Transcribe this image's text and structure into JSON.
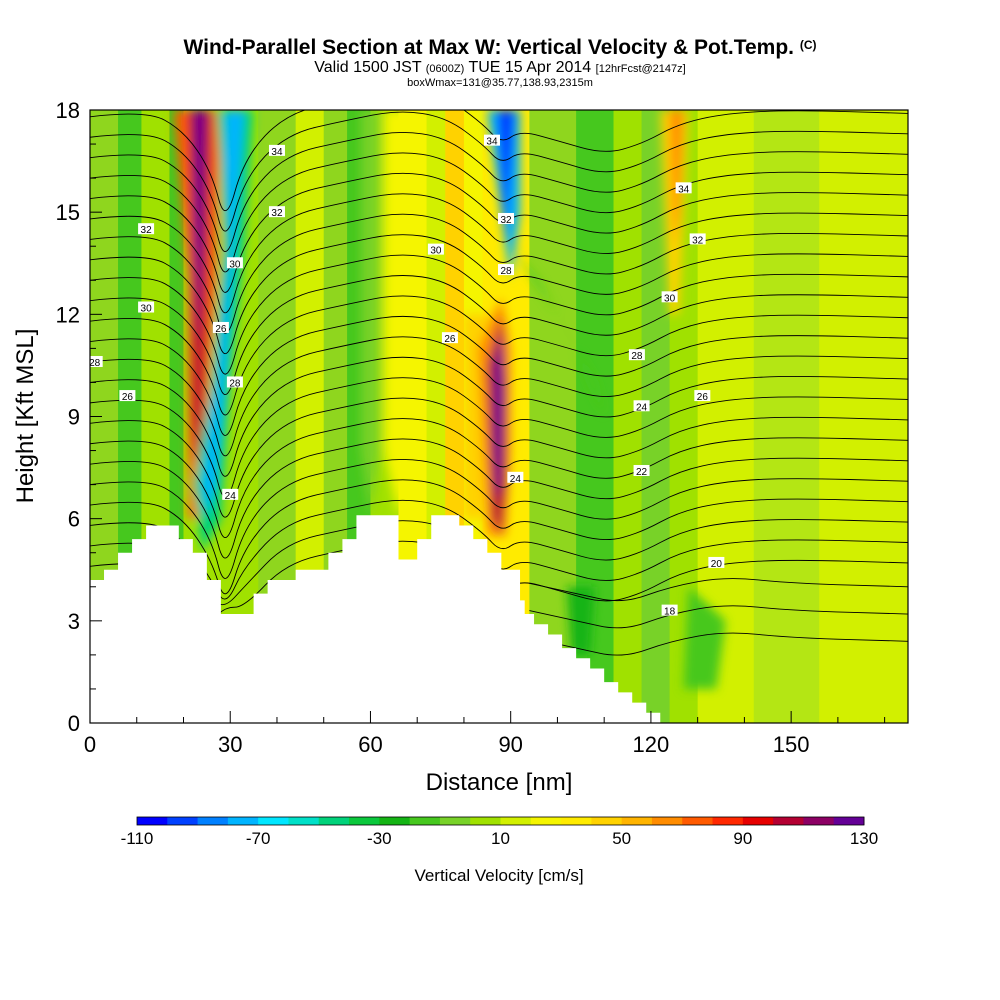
{
  "title": {
    "main": "Wind-Parallel Section at Max W: Vertical Velocity & Pot.Temp.",
    "copyright": "(C)",
    "valid_prefix": "Valid 1500 JST",
    "valid_zulu": "(0600Z)",
    "valid_date": "TUE 15 Apr 2014",
    "forecast": "[12hrFcst@2147z]",
    "box_info": "boxWmax=131@35.77,138.93,2315m"
  },
  "chart_data": {
    "type": "heatmap",
    "xlabel": "Distance [nm]",
    "ylabel": "Height [Kft MSL]",
    "xlim": [
      0,
      175
    ],
    "ylim": [
      0,
      18
    ],
    "x_ticks": [
      0,
      30,
      60,
      90,
      120,
      150
    ],
    "y_ticks": [
      0,
      3,
      6,
      9,
      12,
      15,
      18
    ],
    "colorbar": {
      "label": "Vertical Velocity [cm/s]",
      "range": [
        -110,
        130
      ],
      "step": 10,
      "tick_labels": [
        "-110",
        "-70",
        "-30",
        "10",
        "50",
        "90",
        "130"
      ],
      "colors": [
        "#0000ff",
        "#0040ff",
        "#0080ff",
        "#00b4ff",
        "#00e6ff",
        "#00e0c8",
        "#00d27a",
        "#0ac83c",
        "#14b414",
        "#46c81e",
        "#78d228",
        "#a0e100",
        "#d2f000",
        "#f5f500",
        "#ffeb00",
        "#ffd200",
        "#ffb400",
        "#ff8c00",
        "#ff5a00",
        "#ff2800",
        "#e60000",
        "#b40032",
        "#8c0064",
        "#640096"
      ]
    },
    "vertical_velocity_features": [
      {
        "x": 23,
        "y_range": [
          4.5,
          18
        ],
        "w": 130,
        "label": "updraft plume"
      },
      {
        "x": 30,
        "y_range": [
          4.5,
          18
        ],
        "w": -100,
        "label": "downdraft plume"
      },
      {
        "x": 87,
        "y_range": [
          4.5,
          12.5
        ],
        "w": 131,
        "label": "max updraft"
      },
      {
        "x": 90,
        "y_range": [
          12.5,
          18
        ],
        "w": -100,
        "label": "downdraft aloft"
      },
      {
        "x": 125,
        "y_range": [
          6,
          18
        ],
        "w": 60,
        "label": "updraft aloft"
      }
    ],
    "potential_temperature_labels": [
      {
        "x": 1,
        "y": 10.6,
        "value": "28"
      },
      {
        "x": 8,
        "y": 9.6,
        "value": "26"
      },
      {
        "x": 12,
        "y": 12.2,
        "value": "30"
      },
      {
        "x": 12,
        "y": 14.5,
        "value": "32"
      },
      {
        "x": 30,
        "y": 6.7,
        "value": "24"
      },
      {
        "x": 31,
        "y": 10.0,
        "value": "28"
      },
      {
        "x": 28,
        "y": 11.6,
        "value": "26"
      },
      {
        "x": 31,
        "y": 13.5,
        "value": "30"
      },
      {
        "x": 40,
        "y": 15.0,
        "value": "32"
      },
      {
        "x": 40,
        "y": 16.8,
        "value": "34"
      },
      {
        "x": 77,
        "y": 11.3,
        "value": "26"
      },
      {
        "x": 74,
        "y": 13.9,
        "value": "30"
      },
      {
        "x": 89,
        "y": 13.3,
        "value": "28"
      },
      {
        "x": 89,
        "y": 14.8,
        "value": "32"
      },
      {
        "x": 86,
        "y": 17.1,
        "value": "34"
      },
      {
        "x": 91,
        "y": 7.2,
        "value": "24"
      },
      {
        "x": 117,
        "y": 10.8,
        "value": "28"
      },
      {
        "x": 118,
        "y": 9.3,
        "value": "24"
      },
      {
        "x": 118,
        "y": 7.4,
        "value": "22"
      },
      {
        "x": 124,
        "y": 3.3,
        "value": "18"
      },
      {
        "x": 134,
        "y": 4.7,
        "value": "20"
      },
      {
        "x": 124,
        "y": 12.5,
        "value": "30"
      },
      {
        "x": 130,
        "y": 14.2,
        "value": "32"
      },
      {
        "x": 127,
        "y": 15.7,
        "value": "34"
      },
      {
        "x": 131,
        "y": 9.6,
        "value": "26"
      }
    ],
    "terrain_profile": [
      [
        0,
        4.2
      ],
      [
        3,
        4.2
      ],
      [
        3,
        4.5
      ],
      [
        6,
        4.5
      ],
      [
        6,
        5.0
      ],
      [
        9,
        5.0
      ],
      [
        9,
        5.4
      ],
      [
        12,
        5.4
      ],
      [
        12,
        5.8
      ],
      [
        19,
        5.8
      ],
      [
        19,
        5.4
      ],
      [
        22,
        5.4
      ],
      [
        22,
        5.0
      ],
      [
        25,
        5.0
      ],
      [
        25,
        4.2
      ],
      [
        28,
        4.2
      ],
      [
        28,
        3.2
      ],
      [
        35,
        3.2
      ],
      [
        35,
        3.8
      ],
      [
        38,
        3.8
      ],
      [
        38,
        4.2
      ],
      [
        41,
        4.2
      ],
      [
        41,
        4.2
      ],
      [
        44,
        4.2
      ],
      [
        44,
        4.5
      ],
      [
        47,
        4.5
      ],
      [
        47,
        4.5
      ],
      [
        51,
        4.5
      ],
      [
        51,
        5.0
      ],
      [
        54,
        5.0
      ],
      [
        54,
        5.4
      ],
      [
        57,
        5.4
      ],
      [
        57,
        6.1
      ],
      [
        66,
        6.1
      ],
      [
        66,
        4.8
      ],
      [
        70,
        4.8
      ],
      [
        70,
        5.4
      ],
      [
        73,
        5.4
      ],
      [
        73,
        6.1
      ],
      [
        79,
        6.1
      ],
      [
        79,
        5.8
      ],
      [
        82,
        5.8
      ],
      [
        82,
        5.4
      ],
      [
        85,
        5.4
      ],
      [
        85,
        5.0
      ],
      [
        88,
        5.0
      ],
      [
        88,
        4.5
      ],
      [
        92,
        4.5
      ],
      [
        92,
        3.6
      ],
      [
        93,
        3.6
      ],
      [
        93,
        3.2
      ],
      [
        95,
        3.2
      ],
      [
        95,
        2.9
      ],
      [
        98,
        2.9
      ],
      [
        98,
        2.6
      ],
      [
        101,
        2.6
      ],
      [
        101,
        2.2
      ],
      [
        104,
        2.2
      ],
      [
        104,
        1.9
      ],
      [
        107,
        1.9
      ],
      [
        107,
        1.6
      ],
      [
        110,
        1.6
      ],
      [
        110,
        1.2
      ],
      [
        113,
        1.2
      ],
      [
        113,
        0.9
      ],
      [
        116,
        0.9
      ],
      [
        116,
        0.6
      ],
      [
        119,
        0.6
      ],
      [
        119,
        0.3
      ],
      [
        122,
        0.3
      ],
      [
        122,
        0.0
      ]
    ]
  }
}
